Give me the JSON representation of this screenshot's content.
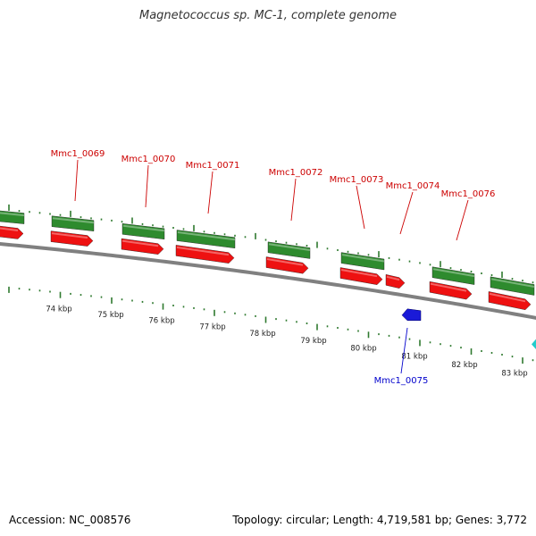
{
  "title": "Magnetococcus sp. MC-1, complete genome",
  "footer": {
    "accession_label": "Accession:",
    "accession": "NC_008576",
    "topology_label": "Topology:",
    "topology": "circular",
    "length_label": "Length:",
    "length": "4,719,581 bp",
    "genes_label": "Genes:",
    "genes": "3,772"
  },
  "colors": {
    "backbone": "#808080",
    "tick": "#2f7a2f",
    "forward_gene": "#2e8b2e",
    "reverse_gene": "#ee1111",
    "label_forward": "#cc0000",
    "label_reverse": "#0000cc",
    "cyan_feature": "#22cccc"
  },
  "scale_labels": [
    "74 kbp",
    "75 kbp",
    "76 kbp",
    "77 kbp",
    "78 kbp",
    "79 kbp",
    "80 kbp",
    "81 kbp",
    "82 kbp",
    "83 kbp"
  ],
  "gene_labels": [
    {
      "id": "Mmc1_0069",
      "strand": "forward"
    },
    {
      "id": "Mmc1_0070",
      "strand": "forward"
    },
    {
      "id": "Mmc1_0071",
      "strand": "forward"
    },
    {
      "id": "Mmc1_0072",
      "strand": "forward"
    },
    {
      "id": "Mmc1_0073",
      "strand": "forward"
    },
    {
      "id": "Mmc1_0074",
      "strand": "forward"
    },
    {
      "id": "Mmc1_0076",
      "strand": "forward"
    },
    {
      "id": "Mmc1_0075",
      "strand": "reverse"
    }
  ]
}
